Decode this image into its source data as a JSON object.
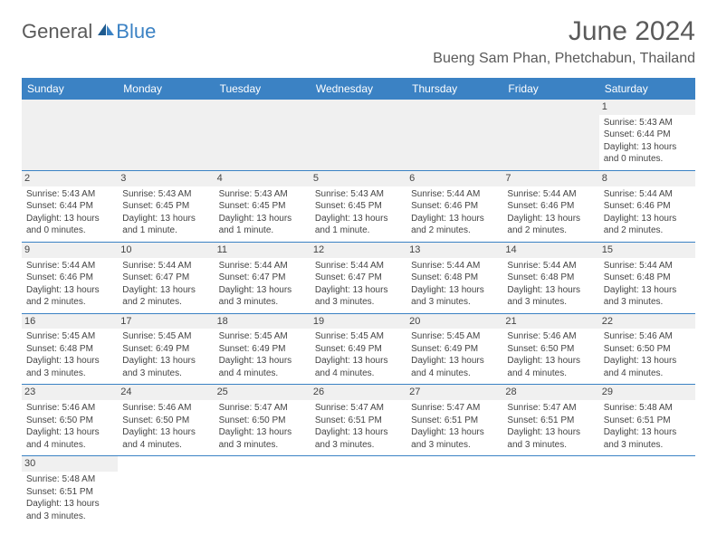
{
  "logo": {
    "general": "General",
    "blue": "Blue"
  },
  "title": "June 2024",
  "location": "Bueng Sam Phan, Phetchabun, Thailand",
  "dayHeaders": [
    "Sunday",
    "Monday",
    "Tuesday",
    "Wednesday",
    "Thursday",
    "Friday",
    "Saturday"
  ],
  "colors": {
    "headerBg": "#3b82c4",
    "logoBlue": "#3b82c4",
    "textGray": "#5a5a5a",
    "cellBorder": "#3b82c4",
    "dayNumBg": "#f0f0f0"
  },
  "weeks": [
    [
      null,
      null,
      null,
      null,
      null,
      null,
      {
        "num": "1",
        "sunrise": "Sunrise: 5:43 AM",
        "sunset": "Sunset: 6:44 PM",
        "daylight": "Daylight: 13 hours and 0 minutes."
      }
    ],
    [
      {
        "num": "2",
        "sunrise": "Sunrise: 5:43 AM",
        "sunset": "Sunset: 6:44 PM",
        "daylight": "Daylight: 13 hours and 0 minutes."
      },
      {
        "num": "3",
        "sunrise": "Sunrise: 5:43 AM",
        "sunset": "Sunset: 6:45 PM",
        "daylight": "Daylight: 13 hours and 1 minute."
      },
      {
        "num": "4",
        "sunrise": "Sunrise: 5:43 AM",
        "sunset": "Sunset: 6:45 PM",
        "daylight": "Daylight: 13 hours and 1 minute."
      },
      {
        "num": "5",
        "sunrise": "Sunrise: 5:43 AM",
        "sunset": "Sunset: 6:45 PM",
        "daylight": "Daylight: 13 hours and 1 minute."
      },
      {
        "num": "6",
        "sunrise": "Sunrise: 5:44 AM",
        "sunset": "Sunset: 6:46 PM",
        "daylight": "Daylight: 13 hours and 2 minutes."
      },
      {
        "num": "7",
        "sunrise": "Sunrise: 5:44 AM",
        "sunset": "Sunset: 6:46 PM",
        "daylight": "Daylight: 13 hours and 2 minutes."
      },
      {
        "num": "8",
        "sunrise": "Sunrise: 5:44 AM",
        "sunset": "Sunset: 6:46 PM",
        "daylight": "Daylight: 13 hours and 2 minutes."
      }
    ],
    [
      {
        "num": "9",
        "sunrise": "Sunrise: 5:44 AM",
        "sunset": "Sunset: 6:46 PM",
        "daylight": "Daylight: 13 hours and 2 minutes."
      },
      {
        "num": "10",
        "sunrise": "Sunrise: 5:44 AM",
        "sunset": "Sunset: 6:47 PM",
        "daylight": "Daylight: 13 hours and 2 minutes."
      },
      {
        "num": "11",
        "sunrise": "Sunrise: 5:44 AM",
        "sunset": "Sunset: 6:47 PM",
        "daylight": "Daylight: 13 hours and 3 minutes."
      },
      {
        "num": "12",
        "sunrise": "Sunrise: 5:44 AM",
        "sunset": "Sunset: 6:47 PM",
        "daylight": "Daylight: 13 hours and 3 minutes."
      },
      {
        "num": "13",
        "sunrise": "Sunrise: 5:44 AM",
        "sunset": "Sunset: 6:48 PM",
        "daylight": "Daylight: 13 hours and 3 minutes."
      },
      {
        "num": "14",
        "sunrise": "Sunrise: 5:44 AM",
        "sunset": "Sunset: 6:48 PM",
        "daylight": "Daylight: 13 hours and 3 minutes."
      },
      {
        "num": "15",
        "sunrise": "Sunrise: 5:44 AM",
        "sunset": "Sunset: 6:48 PM",
        "daylight": "Daylight: 13 hours and 3 minutes."
      }
    ],
    [
      {
        "num": "16",
        "sunrise": "Sunrise: 5:45 AM",
        "sunset": "Sunset: 6:48 PM",
        "daylight": "Daylight: 13 hours and 3 minutes."
      },
      {
        "num": "17",
        "sunrise": "Sunrise: 5:45 AM",
        "sunset": "Sunset: 6:49 PM",
        "daylight": "Daylight: 13 hours and 3 minutes."
      },
      {
        "num": "18",
        "sunrise": "Sunrise: 5:45 AM",
        "sunset": "Sunset: 6:49 PM",
        "daylight": "Daylight: 13 hours and 4 minutes."
      },
      {
        "num": "19",
        "sunrise": "Sunrise: 5:45 AM",
        "sunset": "Sunset: 6:49 PM",
        "daylight": "Daylight: 13 hours and 4 minutes."
      },
      {
        "num": "20",
        "sunrise": "Sunrise: 5:45 AM",
        "sunset": "Sunset: 6:49 PM",
        "daylight": "Daylight: 13 hours and 4 minutes."
      },
      {
        "num": "21",
        "sunrise": "Sunrise: 5:46 AM",
        "sunset": "Sunset: 6:50 PM",
        "daylight": "Daylight: 13 hours and 4 minutes."
      },
      {
        "num": "22",
        "sunrise": "Sunrise: 5:46 AM",
        "sunset": "Sunset: 6:50 PM",
        "daylight": "Daylight: 13 hours and 4 minutes."
      }
    ],
    [
      {
        "num": "23",
        "sunrise": "Sunrise: 5:46 AM",
        "sunset": "Sunset: 6:50 PM",
        "daylight": "Daylight: 13 hours and 4 minutes."
      },
      {
        "num": "24",
        "sunrise": "Sunrise: 5:46 AM",
        "sunset": "Sunset: 6:50 PM",
        "daylight": "Daylight: 13 hours and 4 minutes."
      },
      {
        "num": "25",
        "sunrise": "Sunrise: 5:47 AM",
        "sunset": "Sunset: 6:50 PM",
        "daylight": "Daylight: 13 hours and 3 minutes."
      },
      {
        "num": "26",
        "sunrise": "Sunrise: 5:47 AM",
        "sunset": "Sunset: 6:51 PM",
        "daylight": "Daylight: 13 hours and 3 minutes."
      },
      {
        "num": "27",
        "sunrise": "Sunrise: 5:47 AM",
        "sunset": "Sunset: 6:51 PM",
        "daylight": "Daylight: 13 hours and 3 minutes."
      },
      {
        "num": "28",
        "sunrise": "Sunrise: 5:47 AM",
        "sunset": "Sunset: 6:51 PM",
        "daylight": "Daylight: 13 hours and 3 minutes."
      },
      {
        "num": "29",
        "sunrise": "Sunrise: 5:48 AM",
        "sunset": "Sunset: 6:51 PM",
        "daylight": "Daylight: 13 hours and 3 minutes."
      }
    ],
    [
      {
        "num": "30",
        "sunrise": "Sunrise: 5:48 AM",
        "sunset": "Sunset: 6:51 PM",
        "daylight": "Daylight: 13 hours and 3 minutes."
      },
      null,
      null,
      null,
      null,
      null,
      null
    ]
  ]
}
